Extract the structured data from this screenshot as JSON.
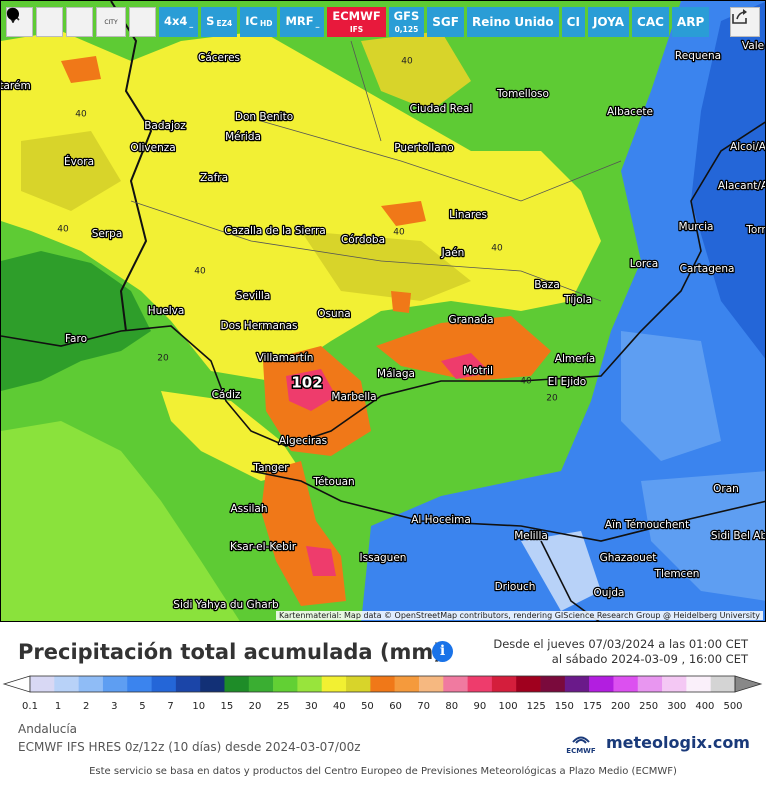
{
  "toolbar": {
    "buttons": [
      {
        "main": "4x4",
        "sub": "_"
      },
      {
        "main": "S",
        "sub": "EZ4"
      },
      {
        "main": "IC",
        "sub": "HD"
      },
      {
        "main": "MRF",
        "sub": "_"
      },
      {
        "main": "ECMWF",
        "sub": "IFS"
      },
      {
        "main": "GFS",
        "sub": "0,125"
      },
      {
        "main": "SGF"
      },
      {
        "main": "Reino Unido"
      },
      {
        "main": "CI"
      },
      {
        "main": "JOYA"
      },
      {
        "main": "CAC"
      },
      {
        "main": "ARP"
      }
    ],
    "city": "CITY"
  },
  "map": {
    "places": [
      "Cáceres",
      "Requena",
      "Vale",
      "Tomelloso",
      "Albacete",
      "Badajoz",
      "Don Benito",
      "Ciudad Real",
      "Mérida",
      "Olivenza",
      "Puertollano",
      "Évora",
      "Zafra",
      "Alcoi/A",
      "Alacant/A",
      "Linares",
      "Murcia",
      "Torr",
      "Serpa",
      "Cazalla de la Sierra",
      "Córdoba",
      "Jaén",
      "Lorca",
      "Cartagena",
      "Baza",
      "Tíjola",
      "Sevilla",
      "Huelva",
      "Osuna",
      "Dos Hermanas",
      "Granada",
      "Faro",
      "Villamartín",
      "Almería",
      "Málaga",
      "Motril",
      "El Ejido",
      "Cádiz",
      "Marbella",
      "Algeciras",
      "Tanger",
      "Tétouan",
      "Oran",
      "Assilah",
      "Al Hoceima",
      "Aïn Témouchent",
      "Sidi Bel Ab",
      "Melilla",
      "Ksar-el-Kebir",
      "Issaguen",
      "Ghazaouet",
      "Tlemcen",
      "Driouch",
      "Oujda",
      "Sidi Yahya du Gharb",
      "tarém"
    ],
    "max_value": 102,
    "contour_labels": [
      40,
      40,
      40,
      40,
      40,
      40,
      40,
      20,
      20
    ],
    "attribution": "Kartenmaterial: Map data © OpenStreetMap contributors, rendering GIScience Research Group @ Heidelberg University"
  },
  "legend": {
    "title": "Precipitación total acumulada (mm)",
    "date_from": "Desde el jueves 07/03/2024 a  las 01:00 CET",
    "date_to": "al sábado 2024-03-09 , 16:00 CET",
    "labels": [
      "0.1",
      "1",
      "2",
      "3",
      "5",
      "7",
      "10",
      "15",
      "20",
      "25",
      "30",
      "40",
      "50",
      "60",
      "70",
      "80",
      "90",
      "100",
      "125",
      "150",
      "175",
      "200",
      "250",
      "300",
      "400",
      "500"
    ],
    "colors": [
      "#d8d8f4",
      "#b8d2f8",
      "#8fbcf6",
      "#5e9ef2",
      "#3b84ee",
      "#2466d8",
      "#1b45a8",
      "#123076",
      "#1e8c28",
      "#3aae32",
      "#62d034",
      "#98e43c",
      "#f2f032",
      "#d8d42a",
      "#f07818",
      "#f59a3c",
      "#f6b880",
      "#f07aa0",
      "#ee3c6c",
      "#d41e3c",
      "#a0001e",
      "#7a0a3c",
      "#6a1a8a",
      "#b21ee0",
      "#dc50f0",
      "#e896f0",
      "#f4c8f4",
      "#faf0fa",
      "#d4d4d4"
    ]
  },
  "region": "Andalucía",
  "model": "ECMWF IFS HRES 0z/12z (10 días) desde 2024-03-07/00z",
  "ecmwf_logo": "ECMWF",
  "brand": "meteologix.com",
  "footer": "Este servicio se basa en datos y productos del Centro Europeo de Previsiones Meteorológicas a Plazo Medio (ECMWF)"
}
